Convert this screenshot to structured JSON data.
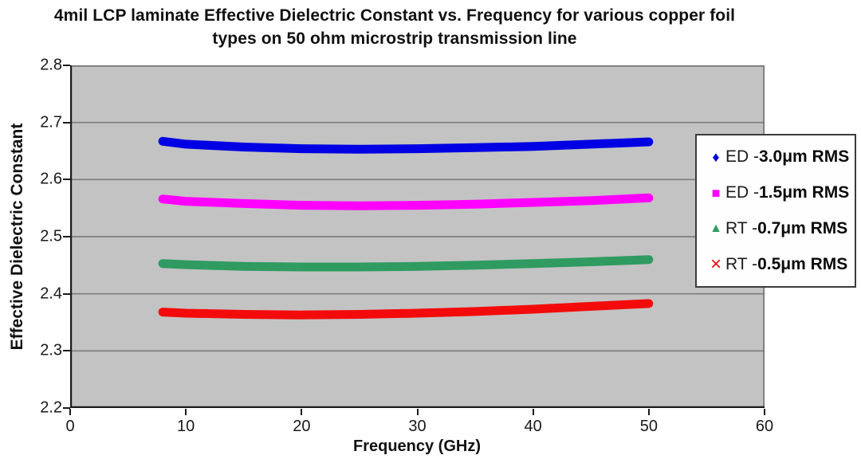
{
  "chart_data": {
    "type": "line",
    "title": "4mil LCP laminate Effective Dielectric Constant vs. Frequency for various copper foil types on 50 ohm microstrip transmission line",
    "title_line1": "4mil LCP laminate Effective Dielectric Constant vs. Frequency for various copper foil",
    "title_line2": "types on 50 ohm microstrip transmission line",
    "xlabel": "Frequency (GHz)",
    "ylabel": "Effective Dielectric Constant",
    "xlim": [
      0,
      60
    ],
    "ylim": [
      2.2,
      2.8
    ],
    "xticks": [
      "0",
      "10",
      "20",
      "30",
      "40",
      "50",
      "60"
    ],
    "yticks": [
      "2.8",
      "2.7",
      "2.6",
      "2.5",
      "2.4",
      "2.3",
      "2.2"
    ],
    "grid": "horizontal",
    "legend_position": "right-overlay",
    "plot_bg_color": "#c3c3c3",
    "gridline_color": "#7d7d7d",
    "x": [
      8,
      10,
      15,
      20,
      25,
      30,
      35,
      40,
      45,
      50
    ],
    "series": [
      {
        "name": "ED - 3.0μm RMS",
        "label_prefix": "ED - ",
        "label_bold": "3.0μm RMS",
        "marker": "diamond",
        "marker_char": "♦",
        "color": "#0000e4",
        "values": [
          2.667,
          2.662,
          2.657,
          2.654,
          2.653,
          2.654,
          2.656,
          2.658,
          2.662,
          2.666
        ]
      },
      {
        "name": "ED - 1.5μm RMS",
        "label_prefix": "ED - ",
        "label_bold": "1.5μm RMS",
        "marker": "square",
        "marker_char": "■",
        "color": "#ff00ff",
        "values": [
          2.566,
          2.562,
          2.558,
          2.555,
          2.554,
          2.555,
          2.557,
          2.56,
          2.563,
          2.568
        ]
      },
      {
        "name": "RT - 0.7μm RMS",
        "label_prefix": "RT - ",
        "label_bold": "0.7μm RMS",
        "marker": "triangle",
        "marker_char": "▲",
        "color": "#2f9b61",
        "values": [
          2.453,
          2.451,
          2.448,
          2.447,
          2.447,
          2.448,
          2.45,
          2.453,
          2.456,
          2.46
        ]
      },
      {
        "name": "RT - 0.5μm RMS",
        "label_prefix": "RT - ",
        "label_bold": "0.5μm RMS",
        "marker": "x",
        "marker_char": "×",
        "color": "#f30b0b",
        "values": [
          2.368,
          2.366,
          2.364,
          2.363,
          2.364,
          2.366,
          2.369,
          2.373,
          2.378,
          2.383
        ]
      }
    ]
  }
}
